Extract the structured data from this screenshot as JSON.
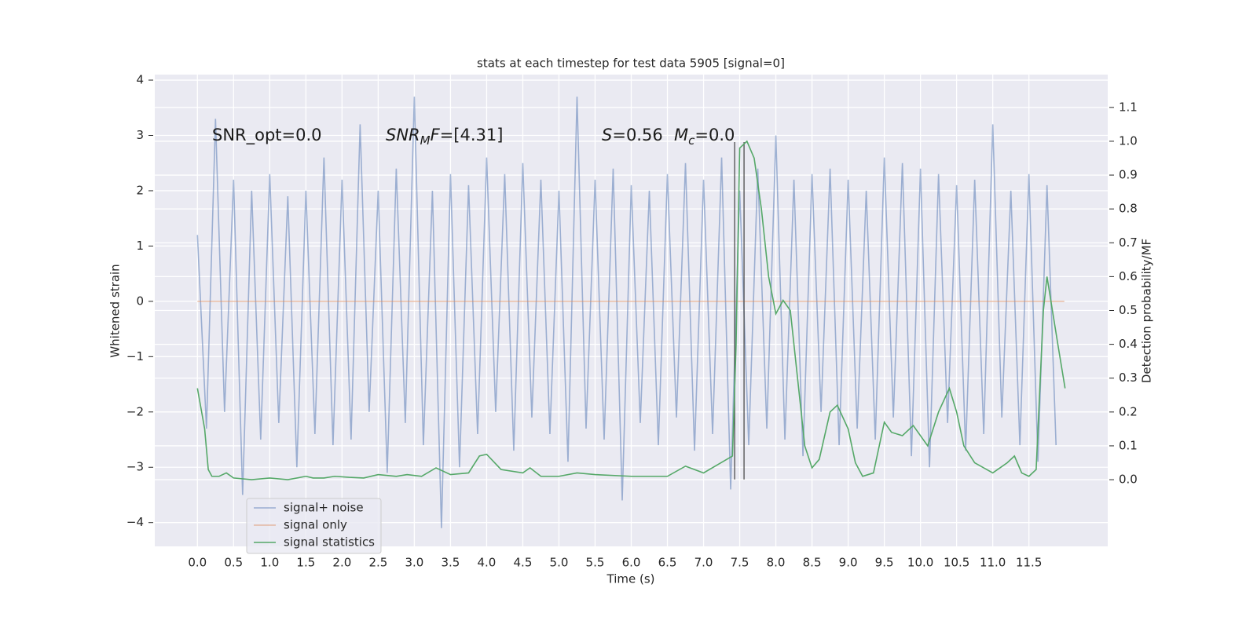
{
  "chart_data": {
    "type": "line",
    "title": "stats at each timestep for test data 5905 [signal=0]",
    "xlabel": "Time (s)",
    "ylabel": "Whitened strain",
    "y2label": "Detection probability/MF",
    "xlim": [
      -0.59,
      12.59
    ],
    "ylim": [
      -4.43,
      4.1
    ],
    "y2lim": [
      -0.197,
      1.197
    ],
    "xticks": [
      {
        "value": 0,
        "label": "0.0"
      },
      0.5,
      {
        "value": 1,
        "label": "1.0"
      },
      1.5,
      {
        "value": 2,
        "label": "2.0"
      },
      2.5,
      {
        "value": 3,
        "label": "3.0"
      },
      3.5,
      {
        "value": 4,
        "label": "4.0"
      },
      4.5,
      {
        "value": 5,
        "label": "5.0"
      },
      5.5,
      {
        "value": 6,
        "label": "6.0"
      },
      6.5,
      {
        "value": 7,
        "label": "7.0"
      },
      7.5,
      {
        "value": 8,
        "label": "8.0"
      },
      8.5,
      {
        "value": 9,
        "label": "9.0"
      },
      9.5,
      {
        "value": 10,
        "label": "10.0"
      },
      10.5,
      {
        "value": 11,
        "label": "11.0"
      },
      11.5
    ],
    "yticks": [
      {
        "value": -4,
        "label": "−4"
      },
      {
        "value": -3,
        "label": "−3"
      },
      {
        "value": -2,
        "label": "−2"
      },
      {
        "value": -1,
        "label": "−1"
      },
      0,
      1,
      2,
      3,
      4
    ],
    "y2ticks": [
      {
        "value": 0,
        "label": "0.0"
      },
      0.1,
      0.2,
      0.3,
      0.4,
      0.5,
      0.6,
      0.7,
      0.8,
      0.9,
      {
        "value": 1,
        "label": "1.0"
      },
      1.1
    ],
    "grid": true,
    "legend_loc": "lower left",
    "series": [
      {
        "name": "signal+ noise",
        "color": "#4c72b0",
        "alpha": 0.5,
        "x": [
          0,
          0.125,
          0.25,
          0.375,
          0.5,
          0.625,
          0.75,
          0.875,
          1,
          1.125,
          1.25,
          1.375,
          1.5,
          1.625,
          1.75,
          1.875,
          2,
          2.125,
          2.25,
          2.375,
          2.5,
          2.625,
          2.75,
          2.875,
          3,
          3.125,
          3.25,
          3.375,
          3.5,
          3.625,
          3.75,
          3.875,
          4,
          4.125,
          4.25,
          4.375,
          4.5,
          4.625,
          4.75,
          4.875,
          5,
          5.125,
          5.25,
          5.375,
          5.5,
          5.625,
          5.75,
          5.875,
          6,
          6.125,
          6.25,
          6.375,
          6.5,
          6.625,
          6.75,
          6.875,
          7,
          7.125,
          7.25,
          7.375,
          7.5,
          7.625,
          7.75,
          7.875,
          8,
          8.125,
          8.25,
          8.375,
          8.5,
          8.625,
          8.75,
          8.875,
          9,
          9.125,
          9.25,
          9.375,
          9.5,
          9.625,
          9.75,
          9.875,
          10,
          10.125,
          10.25,
          10.375,
          10.5,
          10.625,
          10.75,
          10.875,
          11,
          11.125,
          11.25,
          11.375,
          11.5,
          11.625,
          11.75,
          11.875
        ],
        "values": [
          1.2,
          -2.3,
          3.3,
          -2.0,
          2.2,
          -3.5,
          2.0,
          -2.5,
          2.3,
          -2.2,
          1.9,
          -3.0,
          2.0,
          -2.4,
          2.6,
          -2.6,
          2.2,
          -2.5,
          3.2,
          -2.0,
          2.0,
          -3.1,
          2.4,
          -2.2,
          3.7,
          -2.6,
          2.0,
          -4.1,
          2.3,
          -3.0,
          2.1,
          -2.4,
          2.6,
          -2.0,
          2.3,
          -2.7,
          2.5,
          -2.1,
          2.2,
          -2.4,
          2.0,
          -2.9,
          3.7,
          -2.3,
          2.2,
          -2.5,
          2.4,
          -3.6,
          2.1,
          -2.2,
          2.0,
          -2.6,
          2.3,
          -2.1,
          2.5,
          -2.7,
          2.2,
          -2.4,
          2.6,
          -3.4,
          2.0,
          -2.6,
          2.4,
          -2.3,
          3.0,
          -2.5,
          2.2,
          -2.8,
          2.3,
          -2.0,
          2.4,
          -2.6,
          2.2,
          -2.3,
          2.0,
          -2.5,
          2.6,
          -2.1,
          2.5,
          -2.8,
          2.4,
          -3.0,
          2.3,
          -2.2,
          2.1,
          -2.7,
          2.2,
          -2.4,
          3.2,
          -2.1,
          2.0,
          -2.6,
          2.3,
          -2.9,
          2.1,
          -2.6
        ]
      },
      {
        "name": "signal only",
        "color": "#dd8452",
        "alpha": 0.5,
        "x": [
          0,
          11.99
        ],
        "values": [
          0,
          0
        ]
      },
      {
        "name": "signal statistics",
        "color": "#55a868",
        "alpha": 1,
        "axis": "y2",
        "x": [
          0,
          0.1,
          0.15,
          0.2,
          0.3,
          0.4,
          0.5,
          0.75,
          1,
          1.25,
          1.5,
          1.6,
          1.75,
          1.9,
          2.1,
          2.3,
          2.5,
          2.75,
          2.9,
          3.1,
          3.3,
          3.5,
          3.75,
          3.9,
          4,
          4.2,
          4.5,
          4.6,
          4.75,
          5,
          5.25,
          5.5,
          6,
          6.5,
          6.75,
          7,
          7.2,
          7.4,
          7.45,
          7.5,
          7.6,
          7.7,
          7.8,
          7.9,
          8,
          8.1,
          8.2,
          8.3,
          8.4,
          8.5,
          8.6,
          8.75,
          8.85,
          9,
          9.1,
          9.2,
          9.35,
          9.5,
          9.6,
          9.75,
          9.9,
          10.1,
          10.25,
          10.4,
          10.5,
          10.6,
          10.75,
          11,
          11.2,
          11.3,
          11.4,
          11.5,
          11.6,
          11.7,
          11.75,
          11.9,
          12
        ],
        "values": [
          0.27,
          0.15,
          0.03,
          0.01,
          0.01,
          0.02,
          0.005,
          0,
          0.005,
          0,
          0.01,
          0.005,
          0.005,
          0.01,
          0.007,
          0.005,
          0.015,
          0.01,
          0.015,
          0.01,
          0.035,
          0.015,
          0.02,
          0.07,
          0.075,
          0.03,
          0.02,
          0.035,
          0.01,
          0.01,
          0.02,
          0.015,
          0.01,
          0.01,
          0.04,
          0.02,
          0.045,
          0.07,
          0.4,
          0.98,
          1.0,
          0.95,
          0.8,
          0.6,
          0.49,
          0.53,
          0.5,
          0.3,
          0.1,
          0.035,
          0.06,
          0.2,
          0.22,
          0.15,
          0.05,
          0.01,
          0.02,
          0.17,
          0.14,
          0.13,
          0.16,
          0.1,
          0.2,
          0.27,
          0.2,
          0.1,
          0.05,
          0.02,
          0.05,
          0.07,
          0.02,
          0.01,
          0.03,
          0.5,
          0.6,
          0.4,
          0.27
        ]
      }
    ],
    "vlines": {
      "x": [
        7.43,
        7.56
      ],
      "ymin": -3.22,
      "ymax": 2.88,
      "color": "#4d4d4d"
    },
    "annotations": [
      [
        {
          "text": "SNR_opt=0.0"
        }
      ],
      [
        {
          "text": "SNR",
          "italic": true
        },
        {
          "text": "M",
          "italic": true,
          "sub": true
        },
        {
          "text": "F",
          "italic": true
        },
        {
          "text": "=[4.31]"
        }
      ],
      [
        {
          "text": "S",
          "italic": true
        },
        {
          "text": "=0.56"
        }
      ],
      [
        {
          "text": "M",
          "italic": true
        },
        {
          "text": "c",
          "italic": true,
          "sub": true
        },
        {
          "text": "=0.0"
        }
      ]
    ]
  }
}
